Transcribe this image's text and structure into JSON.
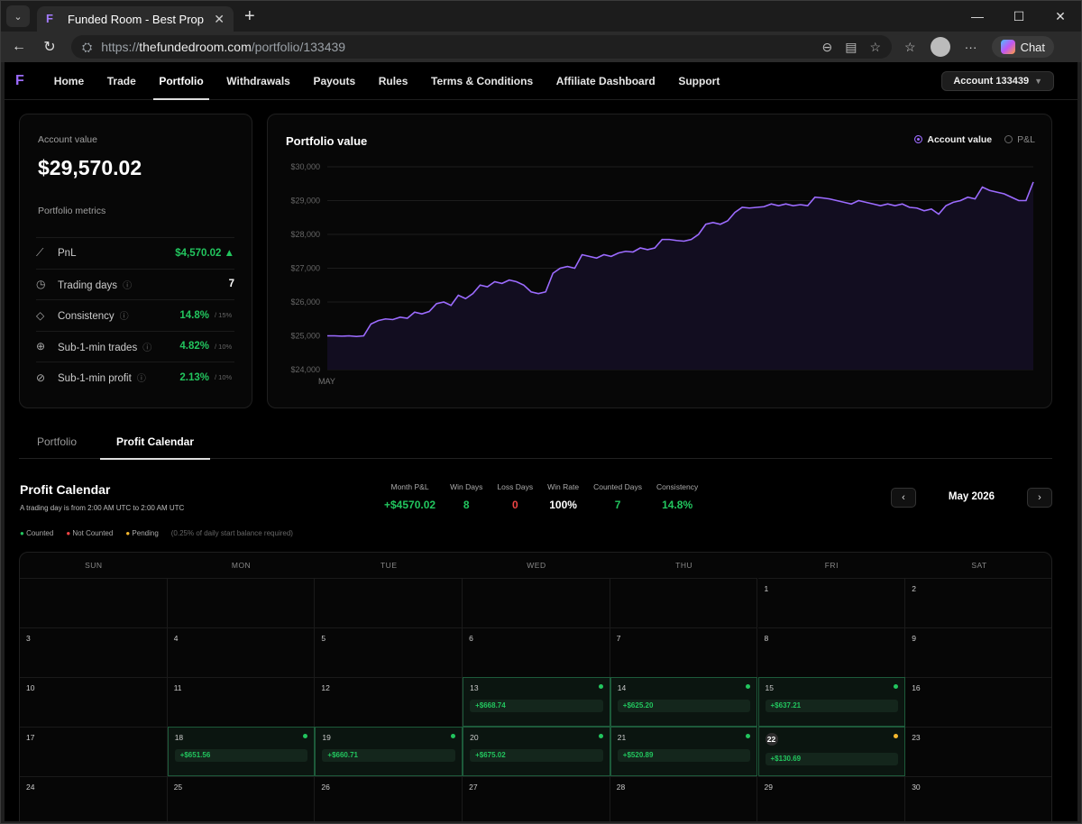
{
  "browser": {
    "tab_title": "Funded Room - Best Prop Trading",
    "url_prefix": "https://",
    "url_host": "thefundedroom.com",
    "url_path": "/portfolio/133439",
    "chat_label": "Chat"
  },
  "nav": {
    "items": [
      "Home",
      "Trade",
      "Portfolio",
      "Withdrawals",
      "Payouts",
      "Rules",
      "Terms & Conditions",
      "Affiliate Dashboard",
      "Support"
    ],
    "active": "Portfolio",
    "account": "Account 133439"
  },
  "account": {
    "label": "Account value",
    "value": "$29,570.02",
    "metrics_label": "Portfolio metrics"
  },
  "metrics": [
    {
      "name": "PnL",
      "value": "$4,570.02 ▲",
      "limit": "",
      "icon": "trend-icon"
    },
    {
      "name": "Trading days",
      "value": "7",
      "limit": "",
      "icon": "clock-icon"
    },
    {
      "name": "Consistency",
      "value": "14.8%",
      "limit": "/ 15%",
      "icon": "diamond-icon"
    },
    {
      "name": "Sub-1-min trades",
      "value": "4.82%",
      "limit": "/ 10%",
      "icon": "plus-circle-icon"
    },
    {
      "name": "Sub-1-min profit",
      "value": "2.13%",
      "limit": "/ 10%",
      "icon": "check-circle-icon"
    }
  ],
  "chart": {
    "title": "Portfolio value",
    "legend_account": "Account value",
    "legend_pnl": "P&L",
    "x_label": "MAY"
  },
  "chart_data": {
    "type": "area",
    "title": "Portfolio value",
    "yticks": [
      "$30,000",
      "$29,000",
      "$28,000",
      "$27,000",
      "$26,000",
      "$25,000",
      "$24,000"
    ],
    "ylim": [
      24000,
      30000
    ],
    "xticks": [
      "MAY"
    ],
    "line_color": "#9c6bff",
    "values": [
      25000,
      25000,
      24990,
      25000,
      24980,
      25000,
      25350,
      25450,
      25500,
      25480,
      25550,
      25520,
      25700,
      25650,
      25720,
      25950,
      26000,
      25900,
      26200,
      26100,
      26250,
      26500,
      26450,
      26600,
      26550,
      26650,
      26600,
      26500,
      26300,
      26250,
      26300,
      26850,
      27000,
      27050,
      27000,
      27400,
      27350,
      27300,
      27400,
      27350,
      27450,
      27500,
      27480,
      27600,
      27550,
      27600,
      27850,
      27850,
      27820,
      27800,
      27850,
      28000,
      28300,
      28350,
      28300,
      28400,
      28650,
      28800,
      28780,
      28800,
      28820,
      28900,
      28850,
      28900,
      28850,
      28880,
      28850,
      29100,
      29080,
      29050,
      29000,
      28950,
      28900,
      29000,
      28950,
      28900,
      28850,
      28900,
      28850,
      28900,
      28800,
      28780,
      28700,
      28750,
      28600,
      28850,
      28950,
      29000,
      29100,
      29050,
      29400,
      29300,
      29250,
      29200,
      29100,
      29000,
      29000,
      29550
    ]
  },
  "tabs": {
    "portfolio": "Portfolio",
    "calendar": "Profit Calendar"
  },
  "calendar": {
    "title": "Profit Calendar",
    "subtitle": "A trading day is from 2:00 AM UTC to 2:00 AM UTC",
    "legend_counted": "Counted",
    "legend_not_counted": "Not Counted",
    "legend_pending": "Pending",
    "legend_note": "(0.25% of daily start balance required)",
    "month": "May 2026",
    "stats": [
      {
        "t": "Month P&L",
        "v": "+$4570.02",
        "c": "green"
      },
      {
        "t": "Win Days",
        "v": "8",
        "c": "green"
      },
      {
        "t": "Loss Days",
        "v": "0",
        "c": "red"
      },
      {
        "t": "Win Rate",
        "v": "100%",
        "c": "white"
      },
      {
        "t": "Counted Days",
        "v": "7",
        "c": "green"
      },
      {
        "t": "Consistency",
        "v": "14.8%",
        "c": "green"
      }
    ],
    "dow": [
      "SUN",
      "MON",
      "TUE",
      "WED",
      "THU",
      "FRI",
      "SAT"
    ],
    "days": [
      [
        "",
        "",
        "",
        "",
        "",
        "1",
        "2"
      ],
      [
        "3",
        "4",
        "5",
        "6",
        "7",
        "8",
        "9"
      ],
      [
        "10",
        "11",
        "12",
        "13",
        "14",
        "15",
        "16"
      ],
      [
        "17",
        "18",
        "19",
        "20",
        "21",
        "22",
        "23"
      ],
      [
        "24",
        "25",
        "26",
        "27",
        "28",
        "29",
        "30"
      ]
    ],
    "profits": {
      "13": "+$668.74",
      "14": "+$625.20",
      "15": "+$637.21",
      "18": "+$651.56",
      "19": "+$660.71",
      "20": "+$675.02",
      "21": "+$520.89",
      "22": "+$130.69"
    },
    "pending": [
      "22"
    ],
    "colors": {
      "counted": "#22c55e",
      "not_counted": "#ef4444",
      "pending": "#f5b82e"
    }
  }
}
